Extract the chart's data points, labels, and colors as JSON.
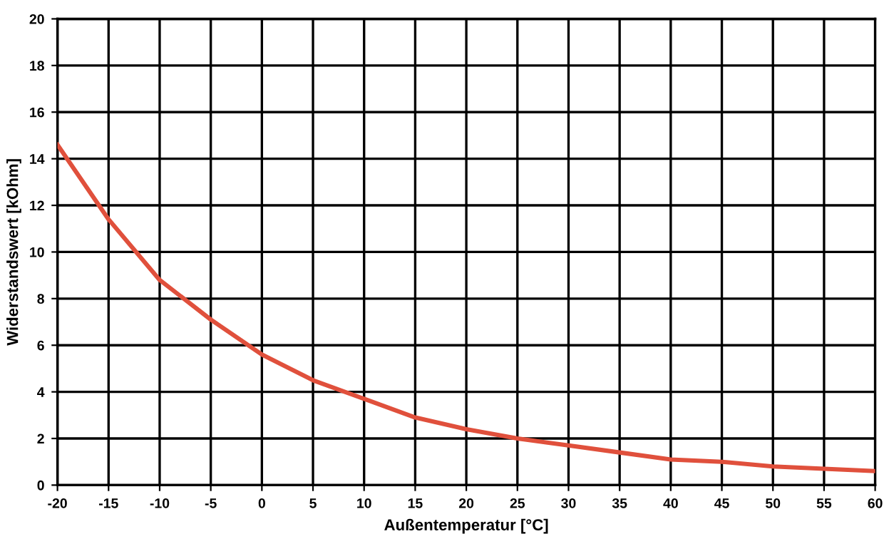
{
  "chart_data": {
    "type": "line",
    "xlabel": "Außentemperatur [°C]",
    "ylabel": "Widerstandswert [kOhm]",
    "x": [
      -20,
      -15,
      -10,
      -5,
      0,
      5,
      10,
      15,
      20,
      25,
      30,
      35,
      40,
      45,
      50,
      55,
      60
    ],
    "series": [
      {
        "color": "#e0503c",
        "values": [
          14.6,
          11.4,
          8.8,
          7.1,
          5.6,
          4.5,
          3.7,
          2.9,
          2.4,
          2.0,
          1.7,
          1.4,
          1.1,
          1.0,
          0.8,
          0.7,
          0.6
        ]
      }
    ],
    "xlim": [
      -20,
      60
    ],
    "xticks": [
      -20,
      -15,
      -10,
      -5,
      0,
      5,
      10,
      15,
      20,
      25,
      30,
      35,
      40,
      45,
      50,
      55,
      60
    ],
    "ylim": [
      0,
      20
    ],
    "yticks": [
      0,
      2,
      4,
      6,
      8,
      10,
      12,
      14,
      16,
      18,
      20
    ],
    "grid": true,
    "legend": false,
    "marker": "none",
    "line_style": "solid"
  }
}
